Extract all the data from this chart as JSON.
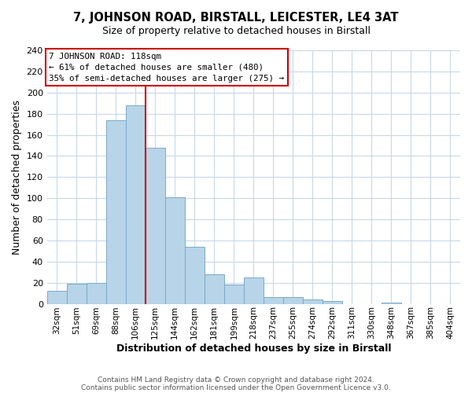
{
  "title": "7, JOHNSON ROAD, BIRSTALL, LEICESTER, LE4 3AT",
  "subtitle": "Size of property relative to detached houses in Birstall",
  "xlabel": "Distribution of detached houses by size in Birstall",
  "ylabel": "Number of detached properties",
  "bar_labels": [
    "32sqm",
    "51sqm",
    "69sqm",
    "88sqm",
    "106sqm",
    "125sqm",
    "144sqm",
    "162sqm",
    "181sqm",
    "199sqm",
    "218sqm",
    "237sqm",
    "255sqm",
    "274sqm",
    "292sqm",
    "311sqm",
    "330sqm",
    "348sqm",
    "367sqm",
    "385sqm",
    "404sqm"
  ],
  "bar_values": [
    12,
    19,
    20,
    174,
    188,
    148,
    101,
    54,
    28,
    18,
    25,
    6,
    6,
    4,
    3,
    0,
    0,
    1,
    0,
    0,
    0
  ],
  "bar_color": "#b8d4e8",
  "bar_edge_color": "#7aaac8",
  "vline_color": "#cc0000",
  "annotation_title": "7 JOHNSON ROAD: 118sqm",
  "annotation_line1": "← 61% of detached houses are smaller (480)",
  "annotation_line2": "35% of semi-detached houses are larger (275) →",
  "annotation_box_color": "#ffffff",
  "annotation_box_edge": "#cc0000",
  "ylim": [
    0,
    240
  ],
  "yticks": [
    0,
    20,
    40,
    60,
    80,
    100,
    120,
    140,
    160,
    180,
    200,
    220,
    240
  ],
  "footer1": "Contains HM Land Registry data © Crown copyright and database right 2024.",
  "footer2": "Contains public sector information licensed under the Open Government Licence v3.0.",
  "background_color": "#ffffff",
  "grid_color": "#c8d8e8"
}
